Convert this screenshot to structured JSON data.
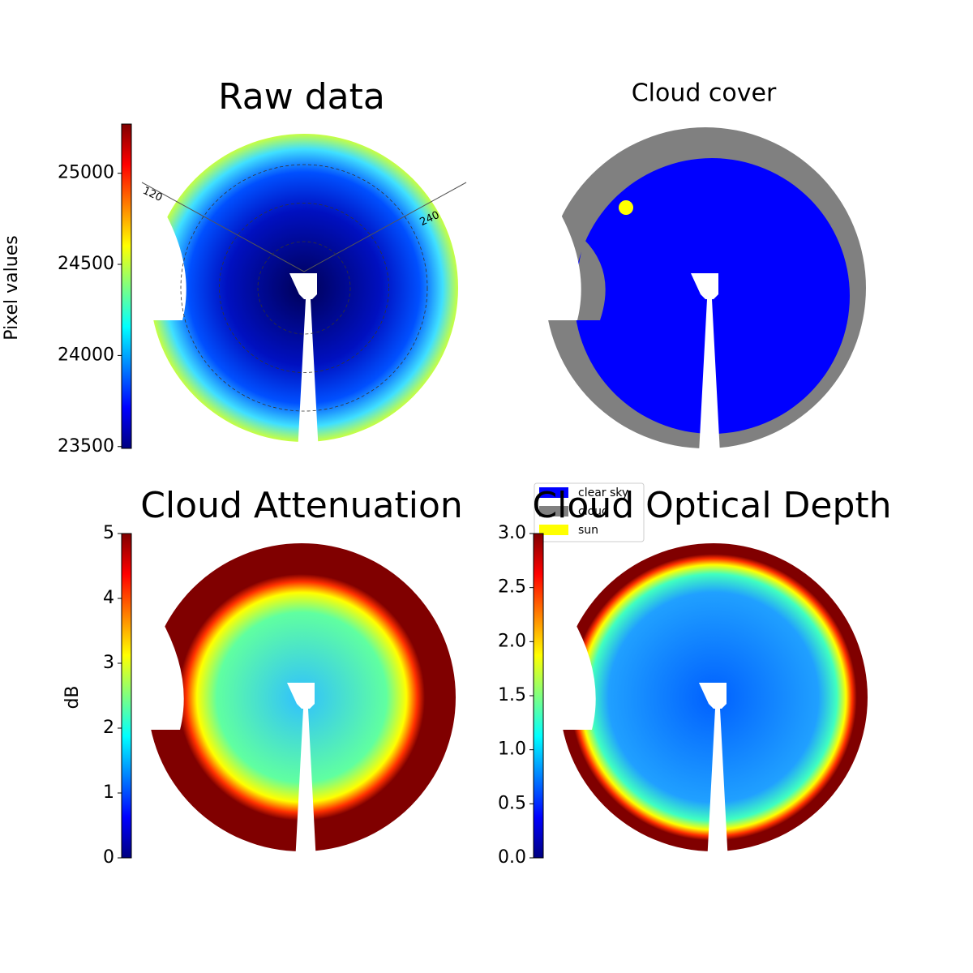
{
  "chart_data": [
    {
      "type": "image",
      "title": "Raw data",
      "ylabel": "Pixel values",
      "ylim": [
        23490,
        25270
      ],
      "yticks": [
        23500,
        24000,
        24500,
        25000
      ],
      "colormap": "jet",
      "polar_labels": [
        "120",
        "240"
      ]
    },
    {
      "type": "image",
      "title": "Cloud cover",
      "series": [
        {
          "name": "clear sky",
          "color": "#0000ff"
        },
        {
          "name": "cloud",
          "color": "#808080"
        },
        {
          "name": "sun",
          "color": "#ffff00"
        }
      ]
    },
    {
      "type": "image",
      "title": "Cloud Attenuation",
      "ylabel": "dB",
      "ylim": [
        0,
        5
      ],
      "yticks": [
        0,
        1,
        2,
        3,
        4,
        5
      ],
      "colormap": "jet"
    },
    {
      "type": "image",
      "title": "Cloud Optical Depth",
      "ylim": [
        0,
        3
      ],
      "yticks": [
        {
          "value": 0,
          "label": "0.0"
        },
        0.5,
        {
          "value": 1,
          "label": "1.0"
        },
        1.5,
        {
          "value": 2,
          "label": "2.0"
        },
        2.5,
        {
          "value": 3,
          "label": "3.0"
        }
      ],
      "colormap": "jet"
    }
  ]
}
